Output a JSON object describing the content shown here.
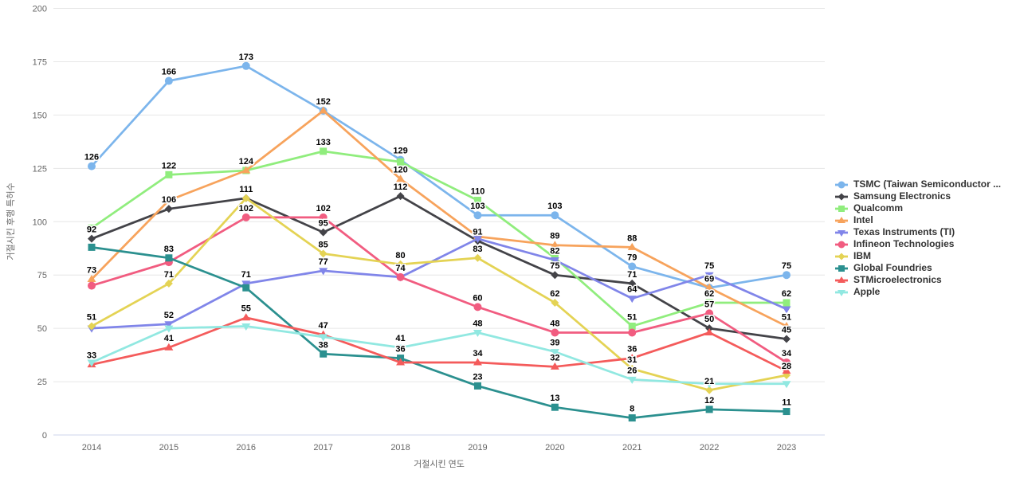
{
  "axes": {
    "x_title": "거절시킨 연도",
    "y_title": "거절시킨 후행 특허수"
  },
  "chart_data": {
    "type": "line",
    "x": [
      2014,
      2015,
      2016,
      2017,
      2018,
      2019,
      2020,
      2021,
      2022,
      2023
    ],
    "xlabel": "거절시킨 연도",
    "ylabel": "거절시킨 후행 특허수",
    "ylim": [
      0,
      200
    ],
    "y_ticks": [
      0,
      25,
      50,
      75,
      100,
      125,
      150,
      175,
      200
    ],
    "grid": "horizontal",
    "legend_position": "right",
    "series": [
      {
        "name": "TSMC (Taiwan Semiconductor ...",
        "color": "#7cb5ec",
        "marker": "circle",
        "values": [
          126,
          166,
          173,
          152,
          129,
          103,
          103,
          79,
          69,
          75
        ],
        "labeled": [
          1,
          1,
          1,
          0,
          1,
          1,
          1,
          1,
          1,
          1
        ]
      },
      {
        "name": "Samsung Electronics",
        "color": "#434348",
        "marker": "diamond",
        "values": [
          92,
          106,
          111,
          95,
          112,
          91,
          75,
          71,
          50,
          45
        ],
        "labeled": [
          1,
          1,
          0,
          1,
          1,
          1,
          1,
          1,
          1,
          1
        ]
      },
      {
        "name": "Qualcomm",
        "color": "#90ed7d",
        "marker": "square",
        "values": [
          97,
          122,
          124,
          133,
          128,
          110,
          83,
          51,
          62,
          62
        ],
        "labeled": [
          0,
          1,
          1,
          1,
          0,
          1,
          0,
          1,
          1,
          1
        ]
      },
      {
        "name": "Intel",
        "color": "#f7a35c",
        "marker": "triangle",
        "values": [
          73,
          110,
          124,
          152,
          120,
          93,
          89,
          88,
          69,
          51
        ],
        "labeled": [
          1,
          0,
          0,
          1,
          1,
          0,
          1,
          1,
          0,
          1
        ]
      },
      {
        "name": "Texas Instruments (TI)",
        "color": "#8085e9",
        "marker": "triangle-down",
        "values": [
          50,
          52,
          71,
          77,
          74,
          92,
          82,
          64,
          75,
          59
        ],
        "labeled": [
          0,
          1,
          1,
          1,
          1,
          0,
          1,
          1,
          1,
          0
        ]
      },
      {
        "name": "Infineon Technologies",
        "color": "#f15c80",
        "marker": "circle",
        "values": [
          70,
          81,
          102,
          102,
          74,
          60,
          48,
          48,
          57,
          34
        ],
        "labeled": [
          0,
          0,
          1,
          1,
          0,
          1,
          1,
          0,
          1,
          1
        ]
      },
      {
        "name": "IBM",
        "color": "#e4d354",
        "marker": "diamond",
        "values": [
          51,
          71,
          111,
          85,
          80,
          83,
          62,
          31,
          21,
          28
        ],
        "labeled": [
          1,
          1,
          1,
          1,
          1,
          1,
          1,
          1,
          1,
          1
        ]
      },
      {
        "name": "Global Foundries",
        "color": "#2b908f",
        "marker": "square",
        "values": [
          88,
          83,
          69,
          38,
          36,
          23,
          13,
          8,
          12,
          11
        ],
        "labeled": [
          0,
          1,
          0,
          1,
          1,
          1,
          1,
          1,
          1,
          1
        ]
      },
      {
        "name": "STMicroelectronics",
        "color": "#f45b5b",
        "marker": "triangle",
        "values": [
          33,
          41,
          55,
          47,
          34,
          34,
          32,
          36,
          48,
          30
        ],
        "labeled": [
          1,
          1,
          1,
          1,
          0,
          1,
          1,
          1,
          0,
          0
        ]
      },
      {
        "name": "Apple",
        "color": "#91e8e1",
        "marker": "triangle-down",
        "values": [
          34,
          50,
          51,
          46,
          41,
          48,
          39,
          26,
          24,
          24
        ],
        "labeled": [
          0,
          0,
          0,
          0,
          1,
          1,
          1,
          1,
          0,
          0
        ]
      }
    ]
  }
}
